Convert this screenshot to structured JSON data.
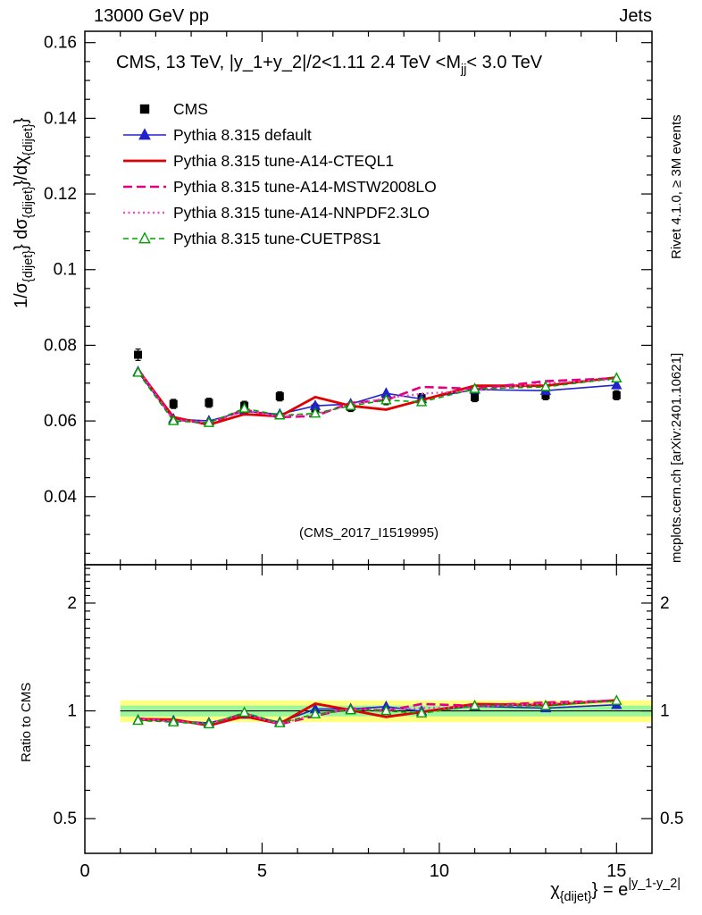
{
  "header": {
    "left": "13000 GeV pp",
    "right": "Jets"
  },
  "side_notes": {
    "top_right": "Rivet 4.1.0, ≥ 3M events",
    "bottom_right": "mcplots.cern.ch [arXiv:2401.10621]"
  },
  "watermark": "(CMS_2017_I1519995)",
  "labels": {
    "ratio_ylabel": "Ratio to CMS",
    "y_main_parts": [
      {
        "t": "1/σ"
      },
      {
        "t": "{dijet}",
        "s": "sub"
      },
      {
        "t": "} dσ"
      },
      {
        "t": "{dijet}",
        "s": "sub"
      },
      {
        "t": "}/dχ"
      },
      {
        "t": "{dijet}",
        "s": "sub"
      },
      {
        "t": "}"
      }
    ],
    "title_parts": [
      {
        "t": "CMS, 13 TeV, |y_1+y_2|/2<1.11 2.4 TeV <M"
      },
      {
        "t": "jj",
        "s": "sub"
      },
      {
        "t": "< 3.0 TeV"
      }
    ],
    "x_label_parts": [
      {
        "t": "χ"
      },
      {
        "t": "{dijet}",
        "s": "sub"
      },
      {
        "t": "} = e"
      },
      {
        "t": "|y_1-y_2|",
        "s": "sup"
      }
    ]
  },
  "chart_data": {
    "type": "line",
    "title": "CMS, 13 TeV, |y_1+y_2|/2<1.11 2.4 TeV <M_jj< 3.0 TeV",
    "xlabel": "chi_{dijet} = e^|y_1-y_2|",
    "ylabel": "1/sigma_{dijet} dsigma_{dijet}/dchi_{dijet}",
    "x": [
      1.5,
      2.5,
      3.5,
      4.5,
      5.5,
      6.5,
      7.5,
      8.5,
      9.5,
      11,
      13,
      15
    ],
    "xlim": [
      0,
      16
    ],
    "ylim": [
      0.022,
      0.163
    ],
    "xticks": [
      0,
      5,
      10,
      15
    ],
    "yticks": [
      0.04,
      0.06,
      0.08,
      0.1,
      0.12,
      0.14,
      0.16
    ],
    "series": [
      {
        "name": "CMS",
        "color": "#000000",
        "line": "none",
        "marker": "square",
        "width": 0,
        "values": [
          0.0775,
          0.0645,
          0.0648,
          0.064,
          0.0665,
          0.0633,
          0.0637,
          0.0655,
          0.066,
          0.0663,
          0.0668,
          0.0668
        ],
        "errors": [
          0.0015,
          0.0012,
          0.0012,
          0.0012,
          0.0012,
          0.0012,
          0.0012,
          0.0012,
          0.0012,
          0.0012,
          0.0012,
          0.0012
        ]
      },
      {
        "name": "Pythia 8.315 default",
        "color": "#2222cc",
        "line": "solid",
        "marker": "triangle",
        "width": 1.6,
        "values": [
          0.073,
          0.0605,
          0.06,
          0.0625,
          0.0618,
          0.064,
          0.0645,
          0.0673,
          0.0658,
          0.0683,
          0.068,
          0.0695
        ]
      },
      {
        "name": "Pythia 8.315 tune-A14-CTEQL1",
        "color": "#e00000",
        "line": "solid",
        "width": 2.8,
        "values": [
          0.0735,
          0.061,
          0.059,
          0.0618,
          0.0612,
          0.0663,
          0.064,
          0.063,
          0.0655,
          0.0693,
          0.0693,
          0.0715
        ]
      },
      {
        "name": "Pythia 8.315 tune-A14-MSTW2008LO",
        "color": "#e2007f",
        "line": "dash",
        "width": 2.6,
        "values": [
          0.0738,
          0.0605,
          0.0593,
          0.063,
          0.061,
          0.0613,
          0.0648,
          0.0655,
          0.069,
          0.0685,
          0.0705,
          0.0713
        ]
      },
      {
        "name": "Pythia 8.315 tune-A14-NNPDF2.3LO",
        "color": "#f542c8",
        "line": "dot",
        "width": 2.2,
        "values": [
          0.0735,
          0.0602,
          0.0597,
          0.0628,
          0.0612,
          0.0618,
          0.0643,
          0.066,
          0.0672,
          0.068,
          0.07,
          0.071
        ]
      },
      {
        "name": "Pythia 8.315 tune-CUETP8S1",
        "color": "#00a000",
        "line": "dash-short",
        "marker": "triangle-open",
        "width": 1.6,
        "values": [
          0.0728,
          0.06,
          0.0595,
          0.0633,
          0.0615,
          0.062,
          0.064,
          0.0655,
          0.065,
          0.0685,
          0.069,
          0.0713
        ]
      }
    ],
    "ratio": {
      "label": "Ratio to CMS",
      "scale": "log",
      "ylim": [
        0.4,
        2.56
      ],
      "yticks": [
        0.5,
        1,
        2
      ],
      "bands": [
        {
          "lo": 0.93,
          "hi": 1.07,
          "color": "#ffff80"
        },
        {
          "lo": 0.965,
          "hi": 1.035,
          "color": "#9cf79c"
        }
      ]
    }
  }
}
